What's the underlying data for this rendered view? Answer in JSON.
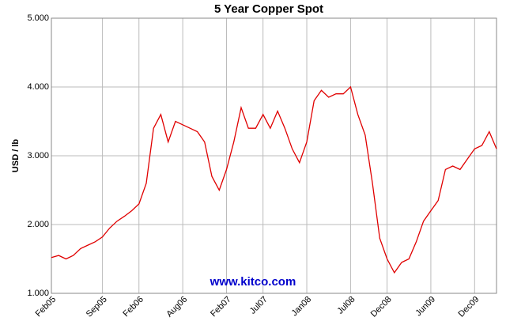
{
  "chart_data": {
    "type": "line",
    "title": "5 Year Copper Spot",
    "y_label": "USD / lb",
    "annotation": "www.kitco.com",
    "x": [
      "2005-02",
      "2005-03",
      "2005-04",
      "2005-05",
      "2005-06",
      "2005-07",
      "2005-08",
      "2005-09",
      "2005-10",
      "2005-11",
      "2005-12",
      "2006-01",
      "2006-02",
      "2006-03",
      "2006-04",
      "2006-05",
      "2006-06",
      "2006-07",
      "2006-08",
      "2006-09",
      "2006-10",
      "2006-11",
      "2006-12",
      "2007-01",
      "2007-02",
      "2007-03",
      "2007-04",
      "2007-05",
      "2007-06",
      "2007-07",
      "2007-08",
      "2007-09",
      "2007-10",
      "2007-11",
      "2007-12",
      "2008-01",
      "2008-02",
      "2008-03",
      "2008-04",
      "2008-05",
      "2008-06",
      "2008-07",
      "2008-08",
      "2008-09",
      "2008-10",
      "2008-11",
      "2008-12",
      "2009-01",
      "2009-02",
      "2009-03",
      "2009-04",
      "2009-05",
      "2009-06",
      "2009-07",
      "2009-08",
      "2009-09",
      "2009-10",
      "2009-11",
      "2009-12",
      "2010-01",
      "2010-02",
      "2010-03"
    ],
    "series": [
      {
        "name": "Copper",
        "color": "#e00000",
        "values": [
          1.52,
          1.55,
          1.5,
          1.55,
          1.65,
          1.7,
          1.75,
          1.82,
          1.95,
          2.05,
          2.12,
          2.2,
          2.3,
          2.6,
          3.4,
          3.6,
          3.2,
          3.5,
          3.45,
          3.4,
          3.35,
          3.2,
          2.7,
          2.5,
          2.8,
          3.2,
          3.7,
          3.4,
          3.4,
          3.6,
          3.4,
          3.65,
          3.4,
          3.1,
          2.9,
          3.2,
          3.8,
          3.95,
          3.85,
          3.9,
          3.9,
          4.0,
          3.6,
          3.3,
          2.6,
          1.8,
          1.5,
          1.3,
          1.45,
          1.5,
          1.75,
          2.05,
          2.2,
          2.35,
          2.8,
          2.85,
          2.8,
          2.95,
          3.1,
          3.15,
          3.35,
          3.1
        ]
      }
    ],
    "xlim": [
      "2005-02",
      "2010-03"
    ],
    "xticks": [
      {
        "value": "2005-02",
        "label": "Feb05"
      },
      {
        "value": "2005-09",
        "label": "Sep05"
      },
      {
        "value": "2006-02",
        "label": "Feb06"
      },
      {
        "value": "2006-08",
        "label": "Aug06"
      },
      {
        "value": "2007-02",
        "label": "Feb07"
      },
      {
        "value": "2007-07",
        "label": "Jul07"
      },
      {
        "value": "2008-01",
        "label": "Jan08"
      },
      {
        "value": "2008-07",
        "label": "Jul08"
      },
      {
        "value": "2008-12",
        "label": "Dec08"
      },
      {
        "value": "2009-06",
        "label": "Jun09"
      },
      {
        "value": "2009-12",
        "label": "Dec09"
      }
    ],
    "ylim": [
      1,
      5
    ],
    "yticks": [
      {
        "value": 1,
        "label": "1.000"
      },
      {
        "value": 2,
        "label": "2.000"
      },
      {
        "value": 3,
        "label": "3.000"
      },
      {
        "value": 4,
        "label": "4.000"
      },
      {
        "value": 5,
        "label": "5.000"
      }
    ],
    "grid": true
  }
}
